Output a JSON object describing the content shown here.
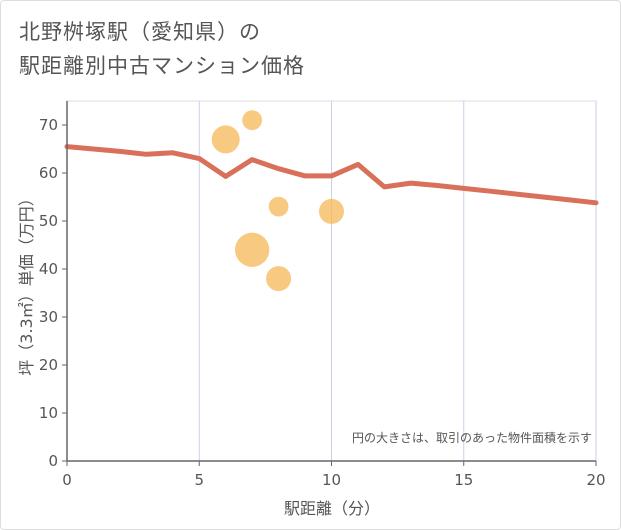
{
  "title_line1": "北野桝塚駅（愛知県）の",
  "title_line2": "駅距離別中古マンション価格",
  "colors": {
    "line": "#d9705a",
    "bubble": "#f5b857",
    "grid": "#c5d3e8"
  },
  "chart_data": {
    "type": "line+scatter",
    "title": "北野桝塚駅（愛知県）の駅距離別中古マンション価格",
    "xlabel": "駅距離（分）",
    "ylabel": "坪（3.3㎡）単価（万円）",
    "xlim": [
      0,
      20
    ],
    "ylim": [
      0,
      75
    ],
    "xticks": [
      0,
      5,
      10,
      15,
      20
    ],
    "yticks": [
      0,
      10,
      20,
      30,
      40,
      50,
      60,
      70
    ],
    "note": "円の大きさは、取引のあった物件面積を示す",
    "line": {
      "x": [
        0,
        1,
        2,
        3,
        4,
        5,
        6,
        7,
        8,
        9,
        10,
        11,
        12,
        13,
        14,
        15,
        16,
        17,
        18,
        19,
        20
      ],
      "y": [
        65.5,
        65.0,
        64.5,
        63.9,
        64.2,
        63.0,
        59.3,
        62.8,
        60.9,
        59.4,
        59.4,
        61.8,
        57.1,
        57.9,
        57.4,
        56.8,
        56.2,
        55.6,
        55.0,
        54.4,
        53.8
      ]
    },
    "bubbles": [
      {
        "x": 6,
        "y": 67,
        "size": 2
      },
      {
        "x": 7,
        "y": 71,
        "size": 1
      },
      {
        "x": 7,
        "y": 44,
        "size": 3
      },
      {
        "x": 8,
        "y": 53,
        "size": 1
      },
      {
        "x": 8,
        "y": 38,
        "size": 1.6
      },
      {
        "x": 10,
        "y": 52,
        "size": 1.6
      }
    ]
  }
}
